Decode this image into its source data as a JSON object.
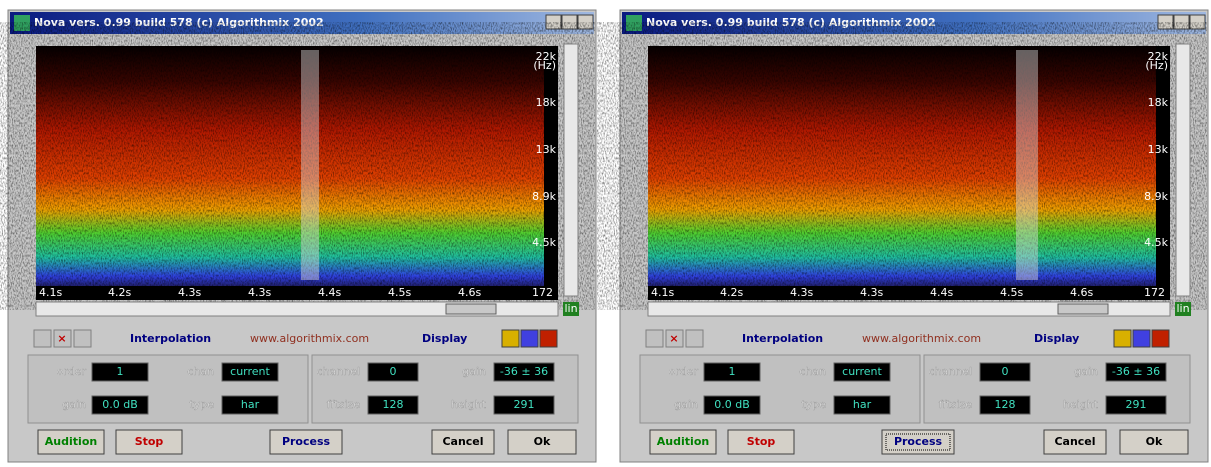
{
  "windows": [
    {
      "title": "Nova vers. 0.99 build 578  (c) Algorithmix 2002",
      "freq_labels": [
        "22k",
        "18k",
        "13k",
        "8.9k",
        "4.5k"
      ],
      "freq_unit": "(Hz)",
      "time_labels": [
        "4.1s",
        "4.2s",
        "4.3s",
        "4.3s",
        "4.4s",
        "4.5s",
        "4.6s",
        "172"
      ],
      "scale_button": "lin",
      "interpolation_label": "Interpolation",
      "url": "www.algorithmix.com",
      "display_label": "Display",
      "fields": [
        {
          "label": "order",
          "value": "1"
        },
        {
          "label": "chan",
          "value": "current"
        },
        {
          "label": "gain",
          "value": "0.0 dB"
        },
        {
          "label": "type",
          "value": "har"
        },
        {
          "label": "channel",
          "value": "0"
        },
        {
          "label": "gain",
          "value": "-36 ± 36"
        },
        {
          "label": "fftsize",
          "value": "128"
        },
        {
          "label": "height",
          "value": "291"
        }
      ],
      "buttons": [
        "Audition",
        "Stop",
        "Process",
        "Cancel",
        "Ok"
      ]
    },
    {
      "title": "Nova vers. 0.99 build 578  (c) Algorithmix 2002",
      "freq_labels": [
        "22k",
        "18k",
        "13k",
        "8.9k",
        "4.5k"
      ],
      "freq_unit": "(Hz)",
      "time_labels": [
        "4.1s",
        "4.2s",
        "4.3s",
        "4.3s",
        "4.4s",
        "4.5s",
        "4.6s",
        "172"
      ],
      "scale_button": "lin",
      "interpolation_label": "Interpolation",
      "url": "www.algorithmix.com",
      "display_label": "Display",
      "fields": [
        {
          "label": "order",
          "value": "1"
        },
        {
          "label": "chan",
          "value": "current"
        },
        {
          "label": "gain",
          "value": "0.0 dB"
        },
        {
          "label": "type",
          "value": "har"
        },
        {
          "label": "channel",
          "value": "0"
        },
        {
          "label": "gain",
          "value": "-36 ± 36"
        },
        {
          "label": "fftsize",
          "value": "128"
        },
        {
          "label": "height",
          "value": "291"
        }
      ],
      "buttons": [
        "Audition",
        "Stop",
        "Process",
        "Cancel",
        "Ok"
      ]
    }
  ]
}
